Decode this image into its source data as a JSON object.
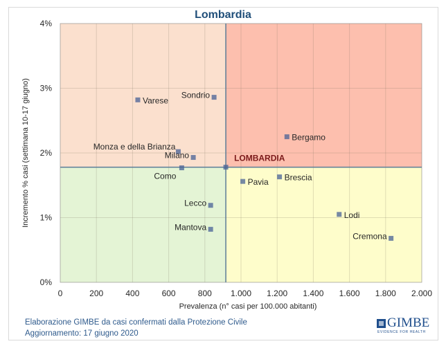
{
  "chart_data": {
    "type": "scatter",
    "title": "Lombardia",
    "xlabel": "Prevalenza  (n° casi per 100.000 abitanti)",
    "ylabel": "Incremento % casi (settimana 10-17 giugno)",
    "xlim": [
      0,
      2000
    ],
    "ylim": [
      0,
      4
    ],
    "x_ticks": [
      0,
      200,
      400,
      600,
      800,
      1000,
      1200,
      1400,
      1600,
      1800,
      2000
    ],
    "x_tick_labels": [
      "0",
      "200",
      "400",
      "600",
      "800",
      "1.000",
      "1.200",
      "1.400",
      "1.600",
      "1.800",
      "2.000"
    ],
    "y_ticks": [
      0,
      1,
      2,
      3,
      4
    ],
    "y_tick_labels": [
      "0%",
      "1%",
      "2%",
      "3%",
      "4%"
    ],
    "grid": true,
    "reference": {
      "name": "LOMBARDIA",
      "x": 916,
      "y": 1.78
    },
    "quadrant_colors": {
      "top_left": "#fbe0ce",
      "top_right": "#fdbfae",
      "bottom_left": "#e4f4d5",
      "bottom_right": "#fefdcb"
    },
    "reference_line_color": "#5b7b96",
    "marker_color": "rgba(72,98,150,0.75)",
    "points": [
      {
        "name": "Varese",
        "x": 429,
        "y": 2.82,
        "label_pos": "right"
      },
      {
        "name": "Sondrio",
        "x": 851,
        "y": 2.86,
        "label_pos": "left"
      },
      {
        "name": "Monza e della Brianza",
        "x": 653,
        "y": 2.02,
        "label_pos": "left-up"
      },
      {
        "name": "Milano",
        "x": 736,
        "y": 1.93,
        "label_pos": "left"
      },
      {
        "name": "Como",
        "x": 672,
        "y": 1.77,
        "label_pos": "below-left"
      },
      {
        "name": "Bergamo",
        "x": 1254,
        "y": 2.25,
        "label_pos": "right"
      },
      {
        "name": "Pavia",
        "x": 1010,
        "y": 1.56,
        "label_pos": "right"
      },
      {
        "name": "Brescia",
        "x": 1213,
        "y": 1.63,
        "label_pos": "right"
      },
      {
        "name": "Lecco",
        "x": 832,
        "y": 1.19,
        "label_pos": "left"
      },
      {
        "name": "Mantova",
        "x": 832,
        "y": 0.82,
        "label_pos": "left"
      },
      {
        "name": "Lodi",
        "x": 1543,
        "y": 1.05,
        "label_pos": "right"
      },
      {
        "name": "Cremona",
        "x": 1830,
        "y": 0.68,
        "label_pos": "left"
      }
    ]
  },
  "footer": {
    "line1": "Elaborazione GIMBE da casi confermati dalla Protezione Civile",
    "line2": "Aggiornamento: 17 giugno 2020"
  },
  "logo": {
    "name": "GIMBE",
    "tagline": "EVIDENCE FOR HEALTH"
  }
}
